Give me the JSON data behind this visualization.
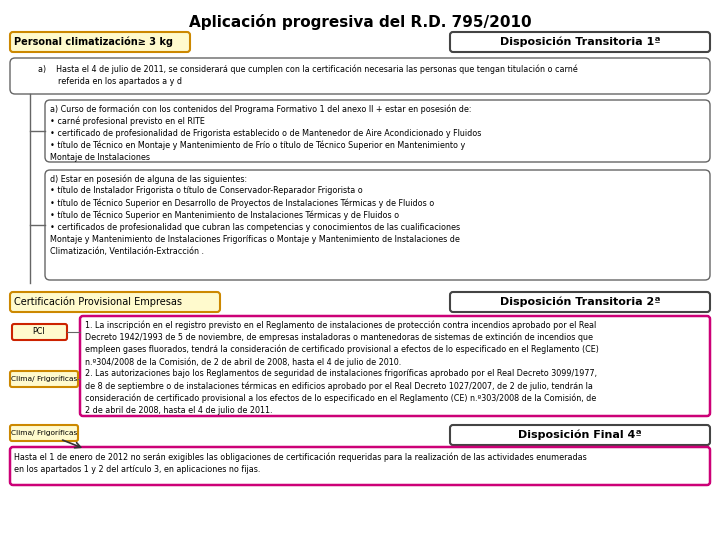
{
  "title": "Aplicación progresiva del R.D. 795/2010",
  "title_fontsize": 11,
  "background_color": "#ffffff",
  "box_personal_label": "Personal climatización≥ 3 kg",
  "box_personal_color": "#fffacd",
  "box_personal_border": "#cc8800",
  "box_disp1_label": "Disposición Transitoria 1ª",
  "box_disp1_color": "#ffffff",
  "box_disp1_border": "#444444",
  "box_a_text": "a)    Hasta el 4 de julio de 2011, se considerará que cumplen con la certificación necesaria las personas que tengan titulación o carné\n        referida en los apartados a y d",
  "box_a_inner_text": "a) Curso de formación con los contenidos del Programa Formativo 1 del anexo II + estar en posesión de:\n• carné profesional previsto en el RITE\n• certificado de profesionalidad de Frigorista establecido o de Mantenedor de Aire Acondicionado y Fluidos\n• título de Técnico en Montaje y Mantenimiento de Frío o título de Técnico Superior en Mantenimiento y\nMontaje de Instalaciones",
  "box_d_inner_text": "d) Estar en posesión de alguna de las siguientes:\n• título de Instalador Frigorista o título de Conservador-Reparador Frigorista o\n• título de Técnico Superior en Desarrollo de Proyectos de Instalaciones Térmicas y de Fluidos o\n• título de Técnico Superior en Mantenimiento de Instalaciones Térmicas y de Fluidos o\n• certificados de profesionalidad que cubran las competencias y conocimientos de las cualificaciones\nMontaje y Mantenimiento de Instalaciones Frigoríficas o Montaje y Mantenimiento de Instalaciones de\nClimatización, Ventilación-Extracción .",
  "box_cert_label": "Certificación Provisional Empresas",
  "box_cert_color": "#fffacd",
  "box_cert_border": "#cc8800",
  "box_disp2_label": "Disposición Transitoria 2ª",
  "box_disp2_color": "#ffffff",
  "box_disp2_border": "#444444",
  "pci_label": "PCI",
  "clima_label": "Clima/ Frigoríficas",
  "box_pci_color": "#fffacd",
  "box_pci_border": "#cc2200",
  "box_clima1_color": "#fffacd",
  "box_clima1_border": "#cc8800",
  "big_box2_text": "1. La inscripción en el registro previsto en el Reglamento de instalaciones de protección contra incendios aprobado por el Real\nDecreto 1942/1993 de 5 de noviembre, de empresas instaladoras o mantenedoras de sistemas de extinción de incendios que\nempleen gases fluorados, tendrá la consideración de certificado provisional a efectos de lo especificado en el Reglamento (CE)\nn.º304/2008 de la Comisión, de 2 de abril de 2008, hasta el 4 de julio de 2010.\n2. Las autorizaciones bajo los Reglamentos de seguridad de instalaciones frigoríficas aprobado por el Real Decreto 3099/1977,\nde 8 de septiembre o de instalaciones térmicas en edificios aprobado por el Real Decreto 1027/2007, de 2 de julio, tendrán la\nconsideración de certificado provisional a los efectos de lo especificado en el Reglamento (CE) n.º303/2008 de la Comisión, de\n2 de abril de 2008, hasta el 4 de julio de 2011.",
  "box_clima2_label": "Clima/ Frigoríficas",
  "box_clima2_color": "#fffacd",
  "box_clima2_border": "#cc8800",
  "box_disp_final_label": "Disposición Final 4ª",
  "box_disp_final_color": "#ffffff",
  "box_disp_final_border": "#444444",
  "final_box_text": "Hasta el 1 de enero de 2012 no serán exigibles las obligaciones de certificación requeridas para la realización de las actividades enumeradas\nen los apartados 1 y 2 del artículo 3, en aplicaciones no fijas.",
  "pink_border": "#cc0077",
  "rounded_border": "#666666",
  "text_fontsize": 5.8,
  "label_fontsize": 7.0,
  "disp_fontsize": 8.0
}
